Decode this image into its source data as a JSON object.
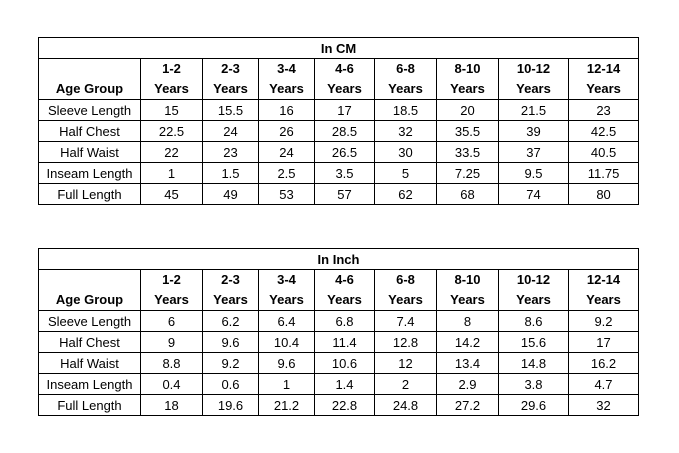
{
  "tables": [
    {
      "title": "In CM",
      "row_header_label": "Age Group",
      "columns": [
        {
          "range": "1-2",
          "unit": "Years"
        },
        {
          "range": "2-3",
          "unit": "Years"
        },
        {
          "range": "3-4",
          "unit": "Years"
        },
        {
          "range": "4-6",
          "unit": "Years"
        },
        {
          "range": "6-8",
          "unit": "Years"
        },
        {
          "range": "8-10",
          "unit": "Years"
        },
        {
          "range": "10-12",
          "unit": "Years"
        },
        {
          "range": "12-14",
          "unit": "Years"
        }
      ],
      "rows": [
        {
          "label": "Sleeve Length",
          "values": [
            "15",
            "15.5",
            "16",
            "17",
            "18.5",
            "20",
            "21.5",
            "23"
          ]
        },
        {
          "label": "Half Chest",
          "values": [
            "22.5",
            "24",
            "26",
            "28.5",
            "32",
            "35.5",
            "39",
            "42.5"
          ]
        },
        {
          "label": "Half Waist",
          "values": [
            "22",
            "23",
            "24",
            "26.5",
            "30",
            "33.5",
            "37",
            "40.5"
          ]
        },
        {
          "label": "Inseam Length",
          "values": [
            "1",
            "1.5",
            "2.5",
            "3.5",
            "5",
            "7.25",
            "9.5",
            "11.75"
          ]
        },
        {
          "label": "Full Length",
          "values": [
            "45",
            "49",
            "53",
            "57",
            "62",
            "68",
            "74",
            "80"
          ]
        }
      ]
    },
    {
      "title": "In Inch",
      "row_header_label": "Age Group",
      "columns": [
        {
          "range": "1-2",
          "unit": "Years"
        },
        {
          "range": "2-3",
          "unit": "Years"
        },
        {
          "range": "3-4",
          "unit": "Years"
        },
        {
          "range": "4-6",
          "unit": "Years"
        },
        {
          "range": "6-8",
          "unit": "Years"
        },
        {
          "range": "8-10",
          "unit": "Years"
        },
        {
          "range": "10-12",
          "unit": "Years"
        },
        {
          "range": "12-14",
          "unit": "Years"
        }
      ],
      "rows": [
        {
          "label": "Sleeve Length",
          "values": [
            "6",
            "6.2",
            "6.4",
            "6.8",
            "7.4",
            "8",
            "8.6",
            "9.2"
          ]
        },
        {
          "label": "Half Chest",
          "values": [
            "9",
            "9.6",
            "10.4",
            "11.4",
            "12.8",
            "14.2",
            "15.6",
            "17"
          ]
        },
        {
          "label": "Half Waist",
          "values": [
            "8.8",
            "9.2",
            "9.6",
            "10.6",
            "12",
            "13.4",
            "14.8",
            "16.2"
          ]
        },
        {
          "label": "Inseam Length",
          "values": [
            "0.4",
            "0.6",
            "1",
            "1.4",
            "2",
            "2.9",
            "3.8",
            "4.7"
          ]
        },
        {
          "label": "Full Length",
          "values": [
            "18",
            "19.6",
            "21.2",
            "22.8",
            "24.8",
            "27.2",
            "29.6",
            "32"
          ]
        }
      ]
    }
  ]
}
